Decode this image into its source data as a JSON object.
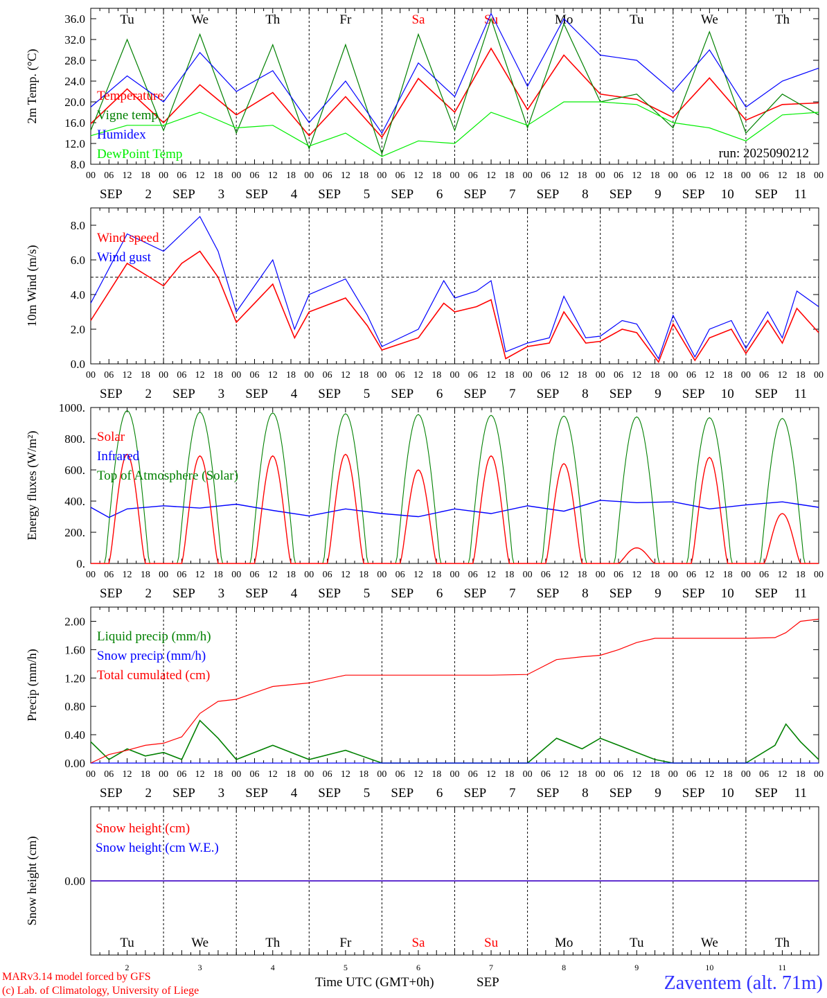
{
  "time_axis": {
    "hour_labels": [
      "00",
      "06",
      "12",
      "18"
    ],
    "month": "SEP",
    "day_numbers": [
      "2",
      "3",
      "4",
      "5",
      "6",
      "7",
      "8",
      "9",
      "10",
      "11"
    ],
    "weekdays": [
      {
        "label": "Tu",
        "color": "#000000"
      },
      {
        "label": "We",
        "color": "#000000"
      },
      {
        "label": "Th",
        "color": "#000000"
      },
      {
        "label": "Fr",
        "color": "#000000"
      },
      {
        "label": "Sa",
        "color": "#ff0000"
      },
      {
        "label": "Su",
        "color": "#ff0000"
      },
      {
        "label": "Mo",
        "color": "#000000"
      },
      {
        "label": "Tu",
        "color": "#000000"
      },
      {
        "label": "We",
        "color": "#000000"
      },
      {
        "label": "Th",
        "color": "#000000"
      }
    ],
    "bottom_title": "Time UTC (GMT+0h)",
    "bottom_month": "SEP"
  },
  "footer": {
    "credit_line1": "MARv3.14 model forced by GFS",
    "credit_line2": "(c) Lab. of Climatology, University of Liege",
    "station": "Zaventem (alt. 71m)"
  },
  "chart_data": [
    {
      "type": "line",
      "ylabel": "2m Temp. (°C)",
      "ylim": [
        8,
        38
      ],
      "yticks": [
        "8.0",
        "12.0",
        "16.0",
        "20.0",
        "24.0",
        "28.0",
        "32.0",
        "36.0"
      ],
      "annotation": "run: 2025090212",
      "x_days": [
        0,
        0.5,
        1,
        1.5,
        2,
        2.5,
        3,
        3.5,
        4,
        4.5,
        5,
        5.5,
        6,
        6.5,
        7,
        7.5,
        8,
        8.5,
        9,
        9.5,
        10
      ],
      "series": [
        {
          "name": "Temperature",
          "color": "#ff0000",
          "values": [
            15.8,
            22.5,
            16,
            23.3,
            17.5,
            21.8,
            13.5,
            21,
            13.2,
            24.5,
            18,
            30.3,
            18.5,
            29,
            21.5,
            20.5,
            17,
            24.6,
            16.5,
            19.5,
            19.8
          ]
        },
        {
          "name": "Vigne temp",
          "color": "#008000",
          "values": [
            14.5,
            32,
            14.5,
            33,
            14,
            31,
            11,
            31,
            10,
            33,
            14.5,
            36,
            15,
            35,
            20,
            21.5,
            15,
            33.5,
            14,
            21.5,
            17.5
          ]
        },
        {
          "name": "Humidex",
          "color": "#0000ff",
          "values": [
            19,
            25,
            20,
            29.5,
            22,
            26,
            16,
            24,
            14,
            27.5,
            21,
            37,
            23,
            36,
            29,
            28,
            22,
            30,
            19,
            24,
            26.5
          ]
        },
        {
          "name": "DewPoint Temp",
          "color": "#00ee00",
          "values": [
            13.5,
            15.5,
            15.5,
            18,
            15,
            15.5,
            11.5,
            14,
            9.5,
            12.5,
            12,
            18,
            15.5,
            20,
            20,
            19.5,
            16,
            15,
            12.5,
            17.5,
            18
          ]
        }
      ]
    },
    {
      "type": "line",
      "ylabel": "10m Wind (m/s)",
      "ylim": [
        0,
        9
      ],
      "yticks": [
        "0.0",
        "2.0",
        "4.0",
        "6.0",
        "8.0"
      ],
      "reference_line": 5,
      "x_days": [
        0,
        0.5,
        1,
        1.25,
        1.5,
        1.75,
        2,
        2.5,
        2.8,
        3,
        3.5,
        3.8,
        4,
        4.5,
        4.85,
        5,
        5.3,
        5.5,
        5.7,
        6,
        6.3,
        6.5,
        6.8,
        7,
        7.3,
        7.5,
        7.8,
        8,
        8.3,
        8.5,
        8.8,
        9,
        9.3,
        9.5,
        9.7,
        10
      ],
      "series": [
        {
          "name": "Wind speed",
          "color": "#ff0000",
          "values": [
            2.5,
            5.8,
            4.5,
            5.8,
            6.5,
            5,
            2.4,
            4.6,
            1.5,
            3,
            3.8,
            2.2,
            0.8,
            1.5,
            3.5,
            3,
            3.3,
            3.7,
            0.3,
            1,
            1.2,
            3,
            1.2,
            1.3,
            2.0,
            1.8,
            0.1,
            2.3,
            0.2,
            1.5,
            2.0,
            0.6,
            2.5,
            1.2,
            3.2,
            1.8
          ]
        },
        {
          "name": "Wind gust",
          "color": "#0000ff",
          "values": [
            3.5,
            7.5,
            6.5,
            7.5,
            8.5,
            6.5,
            3.0,
            6.0,
            2.0,
            4.0,
            4.9,
            2.8,
            1.0,
            2.0,
            4.8,
            3.8,
            4.2,
            4.8,
            0.7,
            1.2,
            1.5,
            3.9,
            1.5,
            1.6,
            2.5,
            2.3,
            0.3,
            2.8,
            0.4,
            2.0,
            2.5,
            0.9,
            3.0,
            1.5,
            4.2,
            3.3
          ]
        }
      ]
    },
    {
      "type": "line",
      "ylabel": "Energy fluxes (W/m²)",
      "ylim": [
        0,
        1000
      ],
      "yticks": [
        "0.",
        "200.",
        "400.",
        "600.",
        "800.",
        "1000."
      ],
      "solar_peaks": [
        700,
        690,
        690,
        700,
        600,
        690,
        640,
        100,
        680,
        320
      ],
      "toa_peaks": [
        980,
        970,
        965,
        960,
        955,
        950,
        945,
        940,
        935,
        930
      ],
      "infrared_days": [
        0,
        0.25,
        0.5,
        1,
        1.5,
        2,
        2.5,
        3,
        3.5,
        4,
        4.5,
        5,
        5.5,
        6,
        6.5,
        7,
        7.5,
        8,
        8.5,
        9,
        9.5,
        10
      ],
      "series": [
        {
          "name": "Solar",
          "color": "#ff0000"
        },
        {
          "name": "Infrared",
          "color": "#0000ff",
          "values": [
            360,
            295,
            350,
            370,
            355,
            380,
            340,
            305,
            350,
            320,
            300,
            350,
            320,
            370,
            335,
            405,
            390,
            395,
            350,
            375,
            395,
            360
          ]
        },
        {
          "name": "Top of Atmosphere (Solar)",
          "color": "#008000"
        }
      ]
    },
    {
      "type": "line",
      "ylabel": "Precip (mm/h)",
      "ylim": [
        0,
        2.2
      ],
      "yticks": [
        "0.00",
        "0.40",
        "0.80",
        "1.20",
        "1.60",
        "2.00"
      ],
      "x_days": [
        0,
        0.25,
        0.5,
        0.75,
        1,
        1.25,
        1.5,
        1.75,
        2,
        2.5,
        3,
        3.5,
        4,
        4.5,
        5,
        5.5,
        6,
        6.4,
        6.75,
        7,
        7.25,
        7.5,
        7.75,
        8,
        8.5,
        9,
        9.4,
        9.55,
        9.75,
        10
      ],
      "series": [
        {
          "name": "Liquid precip (mm/h)",
          "color": "#008000",
          "values": [
            0.3,
            0.05,
            0.2,
            0.1,
            0.15,
            0.05,
            0.6,
            0.35,
            0.05,
            0.25,
            0.05,
            0.18,
            0,
            0,
            0,
            0,
            0,
            0.35,
            0.2,
            0.35,
            0.25,
            0.15,
            0.05,
            0,
            0,
            0,
            0.25,
            0.55,
            0.3,
            0.05
          ]
        },
        {
          "name": "Snow precip (mm/h)",
          "color": "#0000ff",
          "values": [
            0,
            0,
            0,
            0,
            0,
            0,
            0,
            0,
            0,
            0,
            0,
            0,
            0,
            0,
            0,
            0,
            0,
            0,
            0,
            0,
            0,
            0,
            0,
            0,
            0,
            0,
            0,
            0,
            0,
            0
          ]
        },
        {
          "name": "Total cumulated (cm)",
          "color": "#ff0000",
          "values": [
            0,
            0.12,
            0.18,
            0.25,
            0.28,
            0.37,
            0.7,
            0.87,
            0.9,
            1.08,
            1.13,
            1.24,
            1.24,
            1.24,
            1.24,
            1.24,
            1.25,
            1.46,
            1.5,
            1.52,
            1.6,
            1.7,
            1.76,
            1.76,
            1.76,
            1.76,
            1.77,
            1.84,
            2.0,
            2.03
          ]
        }
      ]
    },
    {
      "type": "line",
      "ylabel": "Snow height (cm)",
      "ylim": [
        -1,
        1
      ],
      "yticks": [
        "0.00"
      ],
      "x_days": [
        0,
        10
      ],
      "series": [
        {
          "name": "Snow height (cm)",
          "color": "#ff0000",
          "values": [
            0,
            0
          ]
        },
        {
          "name": "Snow height (cm W.E.)",
          "color": "#0000ff",
          "values": [
            0,
            0
          ]
        }
      ]
    }
  ]
}
